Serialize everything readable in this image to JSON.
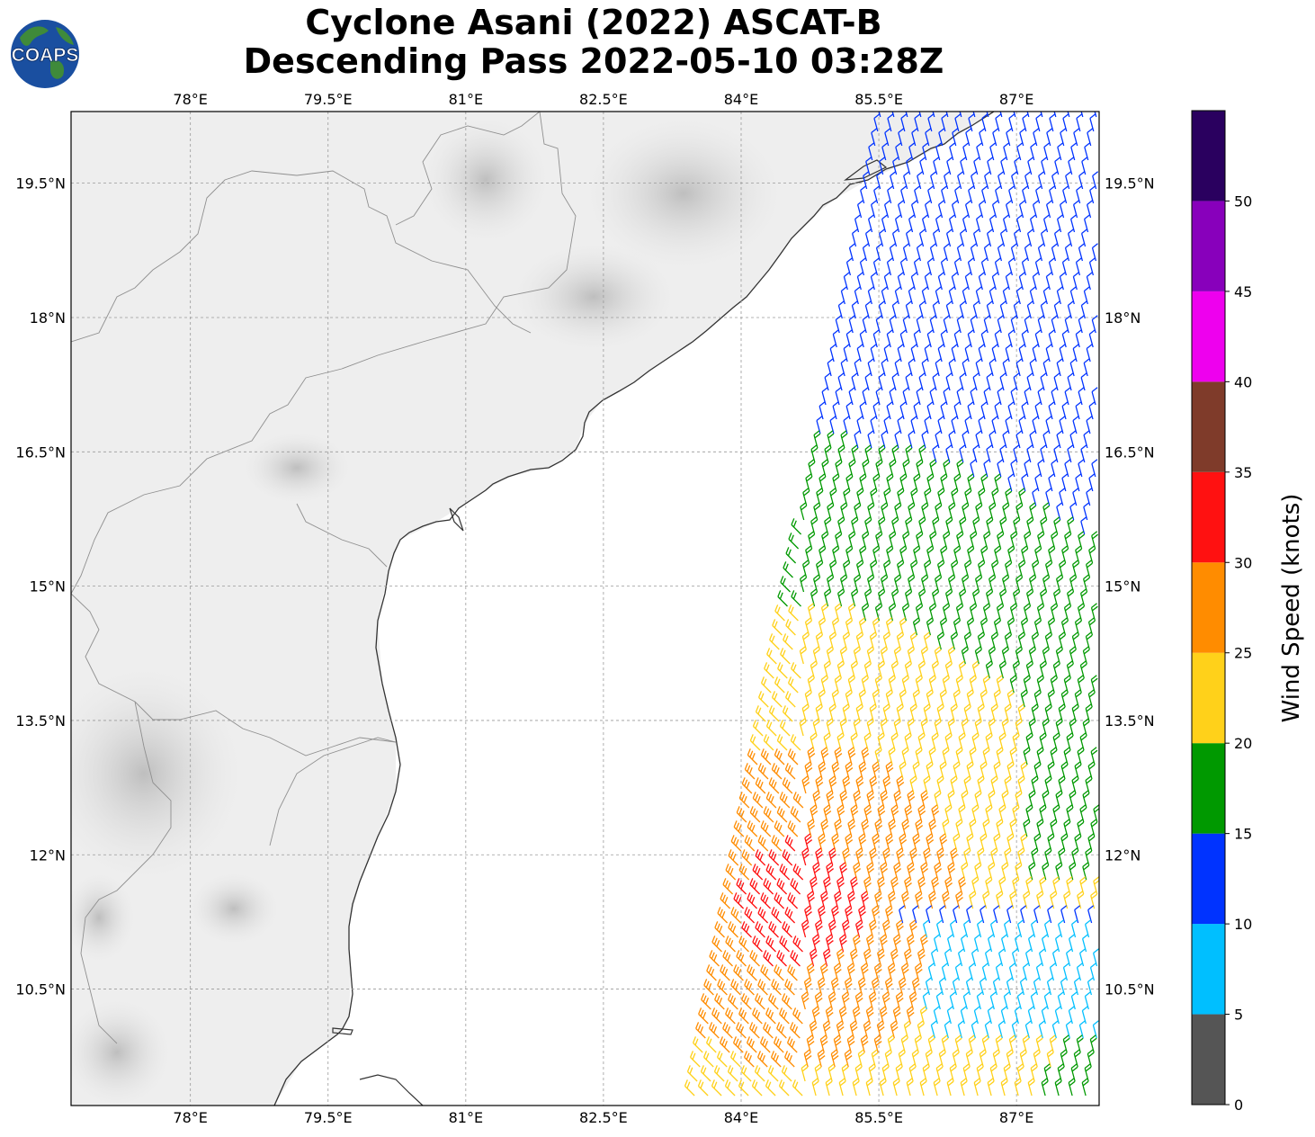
{
  "title": {
    "line1": "Cyclone Asani (2022) ASCAT-B",
    "line2": "Descending Pass 2022-05-10 03:28Z"
  },
  "logo": {
    "text": "COAPS",
    "colors": {
      "ocean": "#1a4fa0",
      "land": "#3f8a3a",
      "text": "#ffffff"
    }
  },
  "map": {
    "lon_range": [
      76.7,
      87.9
    ],
    "lat_range": [
      9.2,
      20.3
    ],
    "lon_ticks": [
      "78°E",
      "79.5°E",
      "81°E",
      "82.5°E",
      "84°E",
      "85.5°E",
      "87°E"
    ],
    "lon_tick_values": [
      78,
      79.5,
      81,
      82.5,
      84,
      85.5,
      87
    ],
    "lat_ticks": [
      "19.5°N",
      "18°N",
      "16.5°N",
      "15°N",
      "13.5°N",
      "12°N",
      "10.5°N"
    ],
    "lat_tick_values": [
      19.5,
      18,
      16.5,
      15,
      13.5,
      12,
      10.5
    ],
    "gridlines": true,
    "coastline_color": "#333333",
    "border_color": "#888888"
  },
  "colorbar": {
    "label": "Wind Speed (knots)",
    "tick_labels": [
      "0",
      "5",
      "10",
      "15",
      "20",
      "25",
      "30",
      "35",
      "40",
      "45",
      "50"
    ],
    "bins": [
      {
        "min": 0,
        "max": 5,
        "color": "#555555"
      },
      {
        "min": 5,
        "max": 10,
        "color": "#00bfff"
      },
      {
        "min": 10,
        "max": 15,
        "color": "#0033ff"
      },
      {
        "min": 15,
        "max": 20,
        "color": "#009900"
      },
      {
        "min": 20,
        "max": 25,
        "color": "#ffd11a"
      },
      {
        "min": 25,
        "max": 30,
        "color": "#ff8c00"
      },
      {
        "min": 30,
        "max": 35,
        "color": "#ff1111"
      },
      {
        "min": 35,
        "max": 40,
        "color": "#7f3b2a"
      },
      {
        "min": 40,
        "max": 45,
        "color": "#ee00ee"
      },
      {
        "min": 45,
        "max": 50,
        "color": "#8800bb"
      },
      {
        "min": 50,
        "max": 55,
        "color": "#2a005f"
      }
    ]
  }
}
